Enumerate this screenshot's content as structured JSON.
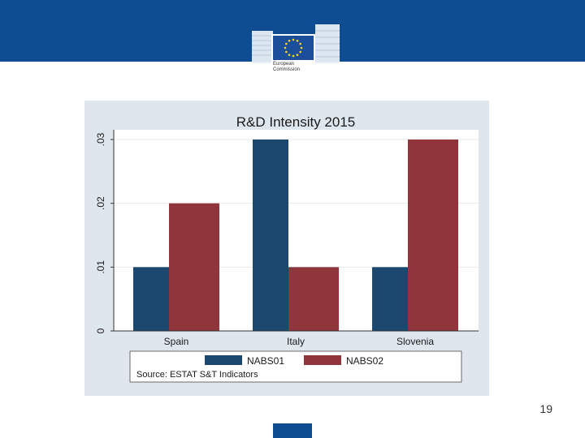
{
  "header": {
    "logo_line1": "European",
    "logo_line2": "Commission",
    "brand_color": "#0e4d92"
  },
  "chart_data": {
    "type": "bar",
    "title": "R&D Intensity 2015",
    "xlabel": "",
    "ylabel": "",
    "categories": [
      "Spain",
      "Italy",
      "Slovenia"
    ],
    "series": [
      {
        "name": "NABS01",
        "color": "#1c4870",
        "values": [
          0.01,
          0.03,
          0.01
        ]
      },
      {
        "name": "NABS02",
        "color": "#90353b",
        "values": [
          0.02,
          0.01,
          0.03
        ]
      }
    ],
    "ylim": [
      0,
      0.03
    ],
    "yticks": [
      0,
      0.01,
      0.02,
      0.03
    ],
    "ytick_labels": [
      "0",
      ".01",
      ".02",
      ".03"
    ],
    "grid": true,
    "legend_position": "bottom",
    "note": "Source: ESTAT S&T Indicators"
  },
  "footer": {
    "page_number": "19"
  }
}
